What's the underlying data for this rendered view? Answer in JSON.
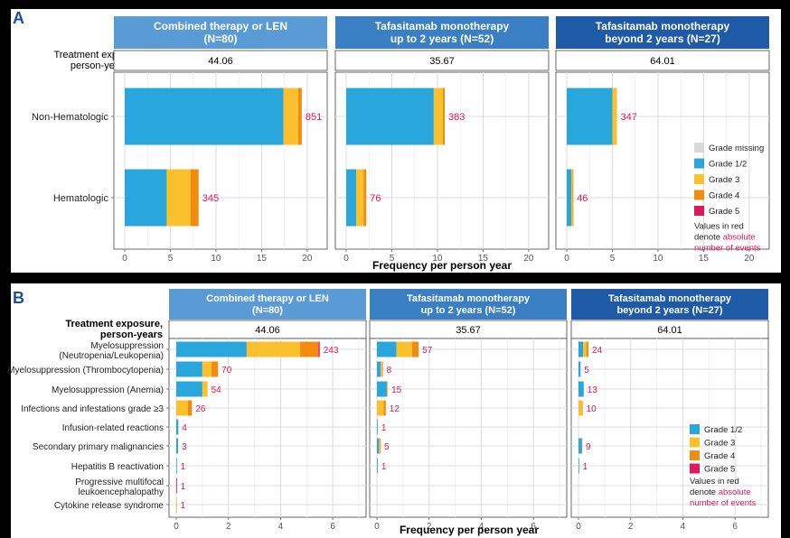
{
  "colors": {
    "grade_missing": "#d9d9d9",
    "grade_1_2": "#29a6dc",
    "grade_3": "#fbc02d",
    "grade_4": "#f28c0f",
    "grade_5": "#e0175a",
    "header_1": "#5b9bd5",
    "header_2": "#3a7fc4",
    "header_3": "#1f5aa6",
    "red_label": "#e0175a"
  },
  "chart_data": [
    {
      "type": "bar",
      "orientation": "horizontal",
      "stacked": true,
      "panel_letter": "A",
      "exposure_label": "Treatment exposure, person-years",
      "xlabel": "Frequency per person year",
      "xlim": [
        0,
        21
      ],
      "xticks": [
        0,
        5,
        10,
        15,
        20
      ],
      "grid": true,
      "categories": [
        "Non-Hematologic",
        "Hematologic"
      ],
      "legend": {
        "position": "right",
        "entries": [
          "Grade missing",
          "Grade 1/2",
          "Grade 3",
          "Grade 4",
          "Grade 5"
        ],
        "note_prefix": "Values in red denote",
        "note_highlight": "absolute number of events"
      },
      "facets": [
        {
          "title_line1": "Combined therapy or LEN",
          "title_line2": "(N=80)",
          "exposure": "44.06",
          "stacks": [
            {
              "category": "Non-Hematologic",
              "grade_1_2": 17.4,
              "grade_3": 1.6,
              "grade_4": 0.4,
              "grade_5": 0.0,
              "count": "851"
            },
            {
              "category": "Hematologic",
              "grade_1_2": 4.6,
              "grade_3": 2.6,
              "grade_4": 0.9,
              "grade_5": 0.0,
              "count": "345"
            }
          ]
        },
        {
          "title_line1": "Tafasitamab monotherapy",
          "title_line2": "up to 2 years (N=52)",
          "exposure": "35.67",
          "stacks": [
            {
              "category": "Non-Hematologic",
              "grade_1_2": 9.6,
              "grade_3": 1.0,
              "grade_4": 0.2,
              "grade_5": 0.0,
              "count": "383"
            },
            {
              "category": "Hematologic",
              "grade_1_2": 1.1,
              "grade_3": 0.8,
              "grade_4": 0.3,
              "grade_5": 0.0,
              "count": "76"
            }
          ]
        },
        {
          "title_line1": "Tafasitamab monotherapy",
          "title_line2": "beyond 2 years (N=27)",
          "exposure": "64.01",
          "stacks": [
            {
              "category": "Non-Hematologic",
              "grade_1_2": 5.0,
              "grade_3": 0.5,
              "grade_4": 0.0,
              "grade_5": 0.0,
              "count": "347"
            },
            {
              "category": "Hematologic",
              "grade_1_2": 0.5,
              "grade_3": 0.15,
              "grade_4": 0.05,
              "grade_5": 0.0,
              "count": "46"
            }
          ]
        }
      ]
    },
    {
      "type": "bar",
      "orientation": "horizontal",
      "stacked": true,
      "panel_letter": "B",
      "exposure_label": "Treatment exposure, person-years",
      "xlabel": "Frequency per person year",
      "xlim": [
        0,
        7
      ],
      "xticks": [
        0,
        2,
        4,
        6
      ],
      "grid": true,
      "categories": [
        "Myelosuppression (Neutropenia/Leukopenia)",
        "Myelosuppression (Thrombocytopenia)",
        "Myelosuppression (Anemia)",
        "Infections and infestations grade ≥3",
        "Infusion-related reactions",
        "Secondary primary malignancies",
        "Hepatitis B reactivation",
        "Progressive multifocal leukoencephalopathy",
        "Cytokine release syndrome"
      ],
      "legend": {
        "position": "right",
        "entries": [
          "Grade 1/2",
          "Grade 3",
          "Grade 4",
          "Grade 5"
        ],
        "note_prefix": "Values in red denote",
        "note_highlight": "absolute number of events"
      },
      "facets": [
        {
          "title_line1": "Combined therapy or LEN",
          "title_line2": "(N=80)",
          "exposure": "44.06",
          "stacks": [
            {
              "grade_1_2": 2.7,
              "grade_3": 2.05,
              "grade_4": 0.7,
              "grade_5": 0.05,
              "count": "243"
            },
            {
              "grade_1_2": 1.0,
              "grade_3": 0.35,
              "grade_4": 0.25,
              "grade_5": 0.0,
              "count": "70"
            },
            {
              "grade_1_2": 1.0,
              "grade_3": 0.2,
              "grade_4": 0.0,
              "grade_5": 0.0,
              "count": "54"
            },
            {
              "grade_1_2": 0.0,
              "grade_3": 0.45,
              "grade_4": 0.15,
              "grade_5": 0.0,
              "count": "26"
            },
            {
              "grade_1_2": 0.08,
              "grade_3": 0.0,
              "grade_4": 0.0,
              "grade_5": 0.0,
              "count": "4"
            },
            {
              "grade_1_2": 0.07,
              "grade_3": 0.0,
              "grade_4": 0.0,
              "grade_5": 0.0,
              "count": "3"
            },
            {
              "grade_1_2": 0.02,
              "grade_3": 0.0,
              "grade_4": 0.0,
              "grade_5": 0.0,
              "count": "1"
            },
            {
              "grade_1_2": 0.0,
              "grade_3": 0.0,
              "grade_4": 0.0,
              "grade_5": 0.02,
              "count": "1"
            },
            {
              "grade_1_2": 0.0,
              "grade_3": 0.02,
              "grade_4": 0.0,
              "grade_5": 0.0,
              "count": "1"
            }
          ]
        },
        {
          "title_line1": "Tafasitamab monotherapy",
          "title_line2": "up to 2 years (N=52)",
          "exposure": "35.67",
          "stacks": [
            {
              "grade_1_2": 0.75,
              "grade_3": 0.6,
              "grade_4": 0.25,
              "grade_5": 0.0,
              "count": "57"
            },
            {
              "grade_1_2": 0.15,
              "grade_3": 0.05,
              "grade_4": 0.03,
              "grade_5": 0.0,
              "count": "8"
            },
            {
              "grade_1_2": 0.38,
              "grade_3": 0.04,
              "grade_4": 0.0,
              "grade_5": 0.0,
              "count": "15"
            },
            {
              "grade_1_2": 0.0,
              "grade_3": 0.26,
              "grade_4": 0.08,
              "grade_5": 0.0,
              "count": "12"
            },
            {
              "grade_1_2": 0.03,
              "grade_3": 0.0,
              "grade_4": 0.0,
              "grade_5": 0.0,
              "count": "1"
            },
            {
              "grade_1_2": 0.08,
              "grade_3": 0.04,
              "grade_4": 0.02,
              "grade_5": 0.0,
              "count": "5"
            },
            {
              "grade_1_2": 0.03,
              "grade_3": 0.0,
              "grade_4": 0.0,
              "grade_5": 0.0,
              "count": "1"
            },
            {
              "grade_1_2": 0.0,
              "grade_3": 0.0,
              "grade_4": 0.0,
              "grade_5": 0.0,
              "count": ""
            },
            {
              "grade_1_2": 0.0,
              "grade_3": 0.0,
              "grade_4": 0.0,
              "grade_5": 0.0,
              "count": ""
            }
          ]
        },
        {
          "title_line1": "Tafasitamab monotherapy",
          "title_line2": "beyond 2 years (N=27)",
          "exposure": "64.01",
          "stacks": [
            {
              "grade_1_2": 0.18,
              "grade_3": 0.12,
              "grade_4": 0.08,
              "grade_5": 0.0,
              "count": "24"
            },
            {
              "grade_1_2": 0.08,
              "grade_3": 0.0,
              "grade_4": 0.0,
              "grade_5": 0.0,
              "count": "5"
            },
            {
              "grade_1_2": 0.2,
              "grade_3": 0.0,
              "grade_4": 0.0,
              "grade_5": 0.0,
              "count": "13"
            },
            {
              "grade_1_2": 0.0,
              "grade_3": 0.13,
              "grade_4": 0.03,
              "grade_5": 0.0,
              "count": "10"
            },
            {
              "grade_1_2": 0.0,
              "grade_3": 0.0,
              "grade_4": 0.0,
              "grade_5": 0.0,
              "count": ""
            },
            {
              "grade_1_2": 0.12,
              "grade_3": 0.0,
              "grade_4": 0.02,
              "grade_5": 0.0,
              "count": "9"
            },
            {
              "grade_1_2": 0.02,
              "grade_3": 0.0,
              "grade_4": 0.0,
              "grade_5": 0.0,
              "count": "1"
            },
            {
              "grade_1_2": 0.0,
              "grade_3": 0.0,
              "grade_4": 0.0,
              "grade_5": 0.0,
              "count": ""
            },
            {
              "grade_1_2": 0.0,
              "grade_3": 0.0,
              "grade_4": 0.0,
              "grade_5": 0.0,
              "count": ""
            }
          ]
        }
      ]
    }
  ]
}
